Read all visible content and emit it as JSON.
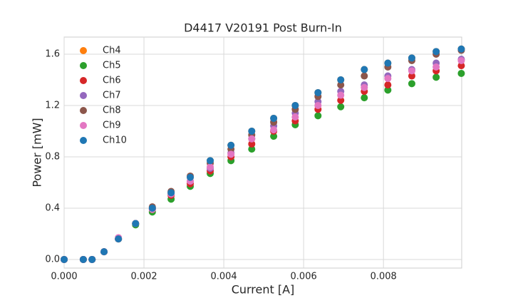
{
  "chart_data": {
    "type": "scatter",
    "title": "D4417 V20191 Post Burn-In",
    "x_label": "Current [A]",
    "y_label": "Power [mW]",
    "x": [
      0,
      0.00048,
      0.0007,
      0.001,
      0.00136,
      0.00179,
      0.00221,
      0.00268,
      0.00316,
      0.00366,
      0.00418,
      0.0047,
      0.00525,
      0.00579,
      0.00636,
      0.00693,
      0.00752,
      0.00811,
      0.00871,
      0.00932,
      0.00995
    ],
    "series": [
      {
        "name": "Ch4",
        "color": "#ff7f0e",
        "values": [
          0,
          0,
          0,
          0.06,
          0.16,
          0.28,
          0.4,
          0.52,
          0.64,
          0.77,
          0.89,
          1.0,
          1.1,
          1.2,
          1.3,
          1.4,
          1.48,
          1.53,
          1.57,
          1.62,
          1.64
        ]
      },
      {
        "name": "Ch5",
        "color": "#2ca02c",
        "values": [
          0,
          0,
          0,
          0.06,
          0.16,
          0.27,
          0.37,
          0.47,
          0.57,
          0.67,
          0.77,
          0.86,
          0.96,
          1.05,
          1.12,
          1.19,
          1.26,
          1.32,
          1.37,
          1.42,
          1.45
        ]
      },
      {
        "name": "Ch6",
        "color": "#d62728",
        "values": [
          0,
          0,
          0,
          0.06,
          0.16,
          0.28,
          0.39,
          0.5,
          0.59,
          0.69,
          0.8,
          0.9,
          1.0,
          1.08,
          1.17,
          1.24,
          1.31,
          1.36,
          1.43,
          1.47,
          1.51
        ]
      },
      {
        "name": "Ch7",
        "color": "#9467bd",
        "values": [
          0,
          0,
          0,
          0.06,
          0.16,
          0.28,
          0.4,
          0.51,
          0.61,
          0.71,
          0.83,
          0.94,
          1.04,
          1.14,
          1.23,
          1.31,
          1.36,
          1.43,
          1.48,
          1.53,
          1.56
        ]
      },
      {
        "name": "Ch8",
        "color": "#8c564b",
        "values": [
          0,
          0,
          0,
          0.06,
          0.16,
          0.28,
          0.41,
          0.53,
          0.65,
          0.75,
          0.86,
          0.97,
          1.07,
          1.17,
          1.27,
          1.36,
          1.43,
          1.5,
          1.55,
          1.6,
          1.63
        ]
      },
      {
        "name": "Ch9",
        "color": "#e377c2",
        "values": [
          0,
          0,
          0,
          0.06,
          0.17,
          0.28,
          0.39,
          0.51,
          0.61,
          0.72,
          0.82,
          0.94,
          1.01,
          1.11,
          1.2,
          1.28,
          1.34,
          1.41,
          1.47,
          1.5,
          1.55
        ]
      },
      {
        "name": "Ch10",
        "color": "#1f77b4",
        "values": [
          0,
          0,
          0,
          0.06,
          0.16,
          0.28,
          0.4,
          0.52,
          0.64,
          0.77,
          0.89,
          1.0,
          1.1,
          1.2,
          1.3,
          1.4,
          1.48,
          1.53,
          1.57,
          1.62,
          1.64
        ]
      }
    ],
    "xlim": [
      0,
      0.00996
    ],
    "ylim": [
      -0.067,
      1.733
    ],
    "xticks": [
      {
        "value": 0,
        "label": "0.000"
      },
      {
        "value": 0.002,
        "label": "0.002"
      },
      {
        "value": 0.004,
        "label": "0.004"
      },
      {
        "value": 0.006,
        "label": "0.006"
      },
      {
        "value": 0.008,
        "label": "0.008"
      }
    ],
    "yticks": [
      {
        "value": 0,
        "label": "0.0"
      },
      0.4,
      0.8,
      1.2,
      1.6
    ],
    "grid": true,
    "legend": "upper left"
  }
}
